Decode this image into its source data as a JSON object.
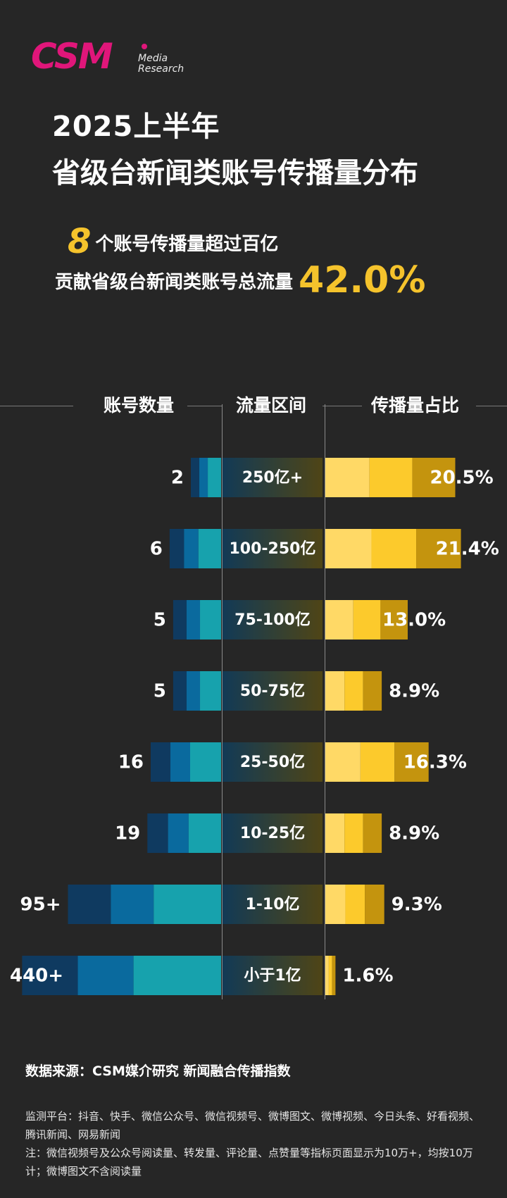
{
  "brand": {
    "logo": "CSM",
    "sub": "Media\nResearch"
  },
  "title": {
    "line1": "2025上半年",
    "line2": "省级台新闻类账号传播量分布"
  },
  "highlight": {
    "count": "8",
    "line1_text": "个账号传播量超过百亿",
    "line2_text": "贡献省级台新闻类账号总流量",
    "pct": "42.0%"
  },
  "headers": {
    "accounts": "账号数量",
    "range": "流量区间",
    "share": "传播量占比"
  },
  "colors": {
    "blue_dark": "#0f3a60",
    "blue_mid": "#0a6a9e",
    "teal": "#17a2ad",
    "yellow_light": "#ffd966",
    "yellow_mid": "#fcca2c",
    "yellow_dark": "#c4940e",
    "accent": "#f5c32c",
    "brand": "#e0167a"
  },
  "chart_data": {
    "type": "bar",
    "categories": [
      "250亿+",
      "100-250亿",
      "75-100亿",
      "50-75亿",
      "25-50亿",
      "10-25亿",
      "1-10亿",
      "小于1亿"
    ],
    "series": [
      {
        "name": "账号数量",
        "values": [
          2,
          6,
          5,
          5,
          16,
          19,
          95,
          440
        ],
        "labels": [
          "2",
          "6",
          "5",
          "5",
          "16",
          "19",
          "95+",
          "440+"
        ]
      },
      {
        "name": "传播量占比",
        "values": [
          20.5,
          21.4,
          13.0,
          8.9,
          16.3,
          8.9,
          9.3,
          1.6
        ],
        "labels": [
          "20.5%",
          "21.4%",
          "13.0%",
          "8.9%",
          "16.3%",
          "8.9%",
          "9.3%",
          "1.6%"
        ]
      }
    ]
  },
  "footer": {
    "source": "数据来源：CSM媒介研究 新闻融合传播指数",
    "platform": "监测平台：抖音、快手、微信公众号、微信视频号、微博图文、微博视频、今日头条、好看视频、腾讯新闻、网易新闻",
    "note": "注：微信视频号及公众号阅读量、转发量、评论量、点赞量等指标页面显示为10万+，均按10万计；微博图文不含阅读量"
  }
}
